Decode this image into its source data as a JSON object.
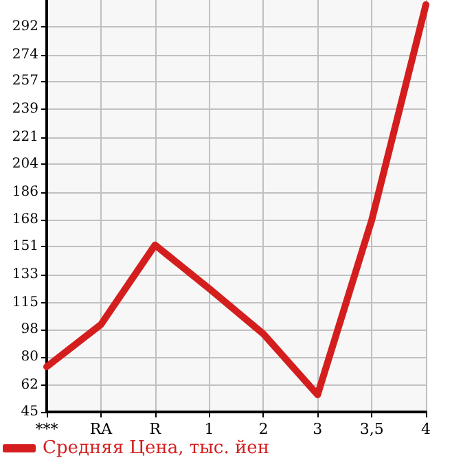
{
  "chart_data": {
    "type": "line",
    "categories": [
      "***",
      "RA",
      "R",
      "1",
      "2",
      "3",
      "3,5",
      "4"
    ],
    "series": [
      {
        "name": "Средняя Цена, тыс. йен",
        "color": "#d41e1e",
        "values": [
          74,
          101,
          152,
          124,
          95,
          56,
          168,
          306
        ]
      }
    ],
    "ylim": [
      45,
      309
    ],
    "yticks": [
      45,
      62,
      80,
      98,
      115,
      133,
      151,
      168,
      186,
      204,
      221,
      239,
      257,
      274,
      292
    ],
    "grid": true,
    "legend": "bottom left",
    "marker": "none",
    "line_style": "solid"
  }
}
